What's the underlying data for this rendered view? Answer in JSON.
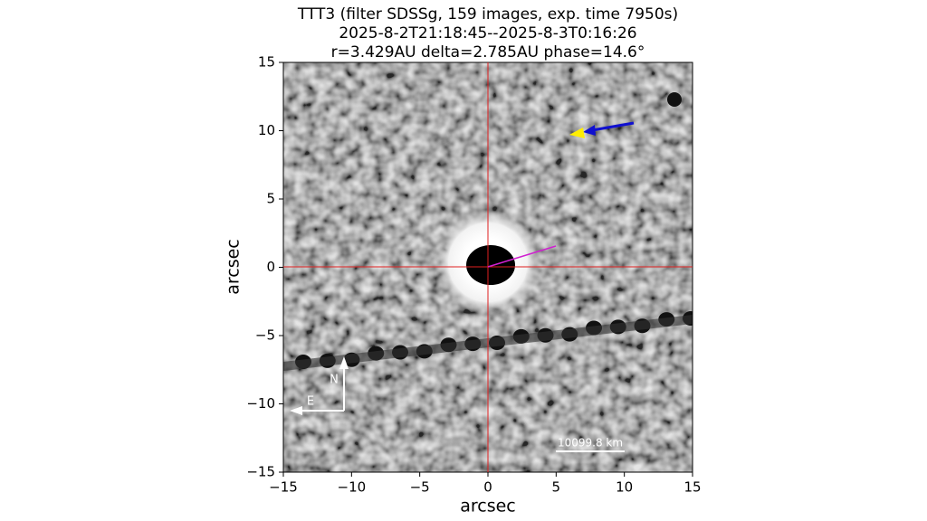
{
  "chart_data": {
    "type": "image",
    "title": [
      "TTT3 (filter SDSSg, 159 images, exp. time 7950s)",
      "2025-8-2T21:18:45--2025-8-3T0:16:26",
      "r=3.429AU delta=2.785AU phase=14.6°"
    ],
    "xlabel": "arcsec",
    "ylabel": "arcsec",
    "xlim": [
      -15,
      15
    ],
    "ylim": [
      -15,
      15
    ],
    "xticks": [
      {
        "value": -15,
        "label": "−15"
      },
      {
        "value": -10,
        "label": "−10"
      },
      {
        "value": -5,
        "label": "−5"
      },
      0,
      5,
      10,
      15
    ],
    "yticks": [
      {
        "value": -15,
        "label": "−15"
      },
      {
        "value": -10,
        "label": "−10"
      },
      {
        "value": -5,
        "label": "−5"
      },
      0,
      5,
      10,
      15
    ],
    "compass_north": "N",
    "compass_east": "E",
    "scale_bar_label": "10099.8 km"
  }
}
